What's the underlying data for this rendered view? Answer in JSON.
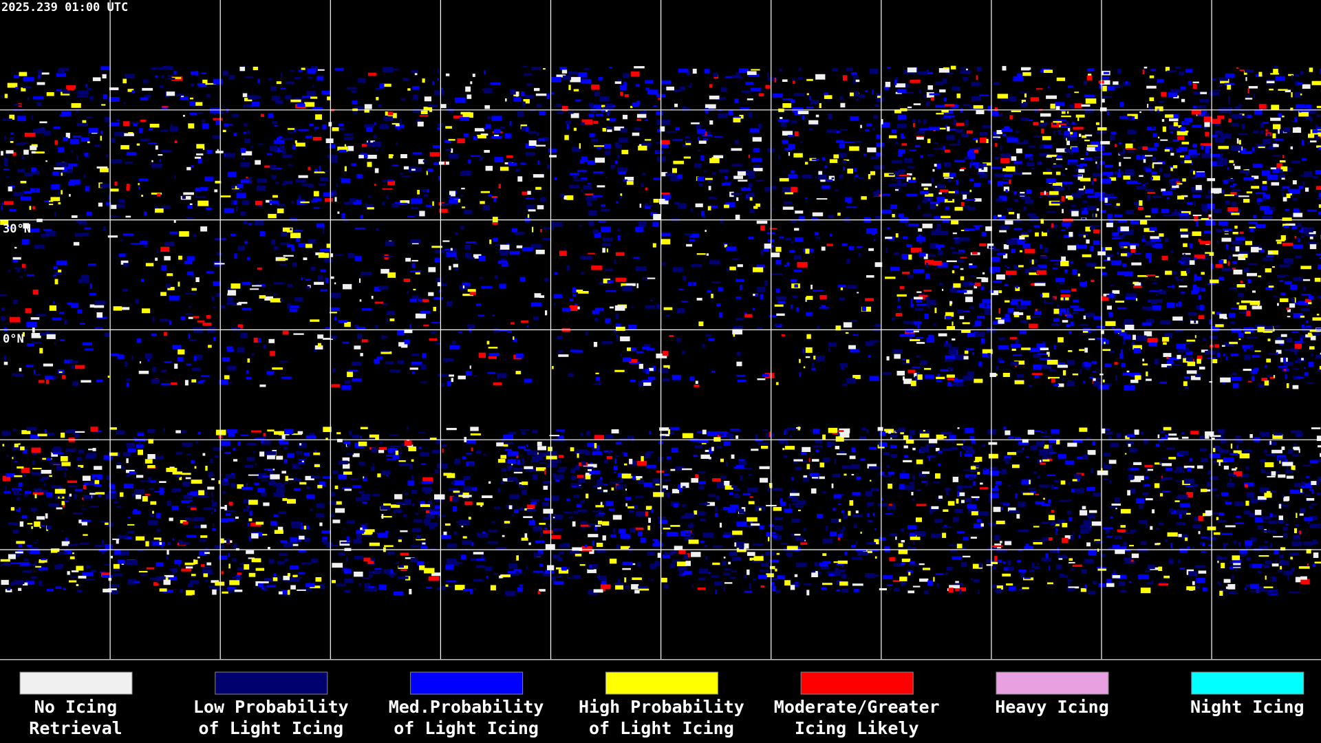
{
  "header": {
    "timestamp": "2025.239 01:00 UTC"
  },
  "map": {
    "latitude_labels": [
      "30°N",
      "0°N"
    ]
  },
  "legend": {
    "items": [
      {
        "color": "#f0f0f0",
        "label": [
          "No Icing",
          "Retrieval"
        ]
      },
      {
        "color": "#00006e",
        "label": [
          "Low Probability",
          "of Light Icing"
        ]
      },
      {
        "color": "#0000ff",
        "label": [
          "Med.Probability",
          "of Light Icing"
        ]
      },
      {
        "color": "#ffff00",
        "label": [
          "High Probability",
          "of Light Icing"
        ]
      },
      {
        "color": "#ff0000",
        "label": [
          "Moderate/Greater",
          "Icing Likely"
        ]
      },
      {
        "color": "#e8a0e0",
        "label": [
          "Heavy Icing"
        ]
      },
      {
        "color": "#00ffff",
        "label": [
          "Night Icing"
        ]
      }
    ]
  }
}
